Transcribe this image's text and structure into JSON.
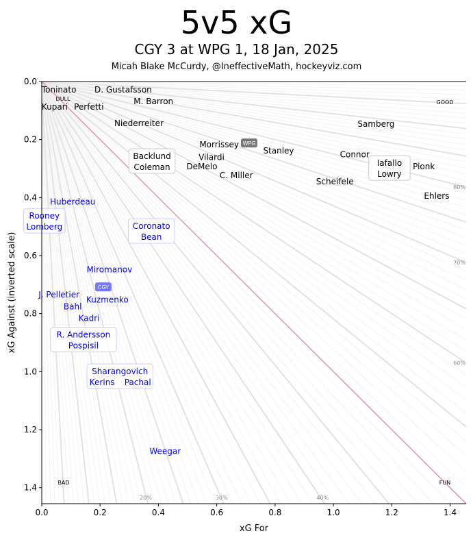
{
  "header": {
    "title": "5v5 xG",
    "subtitle": "CGY 3 at WPG 1, 18 Jan, 2025",
    "credit": "Micah Blake McCurdy, @IneffectiveMath, hockeyviz.com"
  },
  "chart_data": {
    "type": "scatter",
    "xlabel": "xG For",
    "ylabel": "xG Against (inverted scale)",
    "xlim": [
      0,
      1.455
    ],
    "ylim": [
      1.455,
      0
    ],
    "y_inverted": true,
    "xticks": [
      "0.0",
      "0.2",
      "0.4",
      "0.6",
      "0.8",
      "1.0",
      "1.2",
      "1.4"
    ],
    "yticks": [
      "0.0",
      "0.2",
      "0.4",
      "0.6",
      "0.8",
      "1.0",
      "1.2",
      "1.4"
    ],
    "corner_labels": {
      "top_left": "DULL",
      "top_right": "GOOD",
      "bottom_left": "BAD",
      "bottom_right": "FUN"
    },
    "percent_labels": {
      "bottom": [
        {
          "p": 0.2,
          "label": "20%"
        },
        {
          "p": 0.3,
          "label": "30%"
        },
        {
          "p": 0.4,
          "label": "40%"
        }
      ],
      "right": [
        {
          "p": 0.6,
          "label": "60%"
        },
        {
          "p": 0.7,
          "label": "70%"
        },
        {
          "p": 0.8,
          "label": "80%"
        }
      ]
    },
    "colors": {
      "WPG": "#000000",
      "CGY": "#0000ff",
      "WPG_badge": "#777777",
      "CGY_badge": "#7777ff",
      "diagonal": "#e0a0a0",
      "rays": "#e4e4e4"
    },
    "teams": [
      {
        "name": "WPG",
        "x": 0.711,
        "y": 0.213
      },
      {
        "name": "CGY",
        "x": 0.211,
        "y": 0.709
      }
    ],
    "players": [
      {
        "team": "WPG",
        "name": "Toninato",
        "x": 0.059,
        "y": 0.028
      },
      {
        "team": "WPG",
        "name": "D. Gustafsson",
        "x": 0.279,
        "y": 0.028
      },
      {
        "team": "WPG",
        "name": "M. Barron",
        "x": 0.383,
        "y": 0.069
      },
      {
        "team": "WPG",
        "name": "Kupari",
        "x": 0.089,
        "y": 0.087
      },
      {
        "team": "WPG",
        "name": "Perfetti",
        "x": 0.124,
        "y": 0.087
      },
      {
        "team": "WPG",
        "name": "Niederreiter",
        "x": 0.333,
        "y": 0.144
      },
      {
        "team": "WPG",
        "name": "Samberg",
        "x": 1.146,
        "y": 0.147
      },
      {
        "team": "WPG",
        "name": "Morrissey",
        "x": 0.627,
        "y": 0.229
      },
      {
        "team": "WPG",
        "name": "Vilardi",
        "x": 0.582,
        "y": 0.251
      },
      {
        "team": "WPG",
        "name": "Stanley",
        "x": 0.812,
        "y": 0.239
      },
      {
        "team": "WPG",
        "name": "Connor",
        "x": 1.073,
        "y": 0.251
      },
      {
        "team": "WPG",
        "name": "Pionk",
        "x": 1.31,
        "y": 0.293
      },
      {
        "team": "WPG",
        "name": "DeMelo",
        "x": 0.549,
        "y": 0.293
      },
      {
        "team": "WPG",
        "name": "C. Miller",
        "x": 0.667,
        "y": 0.324
      },
      {
        "team": "WPG",
        "name": "Scheifele",
        "x": 1.005,
        "y": 0.345
      },
      {
        "team": "WPG",
        "name": "Ehlers",
        "x": 1.354,
        "y": 0.395
      },
      {
        "team": "CGY",
        "name": "Huberdeau",
        "x": 0.106,
        "y": 0.414
      },
      {
        "team": "CGY",
        "name": "Miromanov",
        "x": 0.232,
        "y": 0.648
      },
      {
        "team": "CGY",
        "name": "J. Pelletier",
        "x": 0.059,
        "y": 0.735
      },
      {
        "team": "CGY",
        "name": "Bahl",
        "x": 0.106,
        "y": 0.745
      },
      {
        "team": "CGY",
        "name": "Kuzmenko",
        "x": 0.225,
        "y": 0.752
      },
      {
        "team": "CGY",
        "name": "Kadri",
        "x": 0.162,
        "y": 0.816
      },
      {
        "team": "CGY",
        "name": "Weegar",
        "x": 0.423,
        "y": 1.274
      }
    ],
    "pairs": [
      {
        "team": "WPG",
        "names": [
          "Iafallo",
          "Lowry"
        ],
        "x": 1.192,
        "y": 0.298
      },
      {
        "team": "WPG",
        "names": [
          "Backlund",
          "Coleman"
        ],
        "x": 0.378,
        "y": 0.274
      },
      {
        "team": "CGY",
        "names": [
          "Rooney",
          "Lomberg"
        ],
        "x": 0.009,
        "y": 0.48
      },
      {
        "team": "CGY",
        "names": [
          "Coronato",
          "Bean"
        ],
        "x": 0.376,
        "y": 0.515
      },
      {
        "team": "CGY",
        "names": [
          "R. Andersson",
          "Pospisil"
        ],
        "x": 0.143,
        "y": 0.889
      },
      {
        "team": "CGY",
        "names": [
          "Sharangovich",
          "Kerins",
          "Pachal"
        ],
        "x": 0.268,
        "y": 1.016
      }
    ]
  }
}
